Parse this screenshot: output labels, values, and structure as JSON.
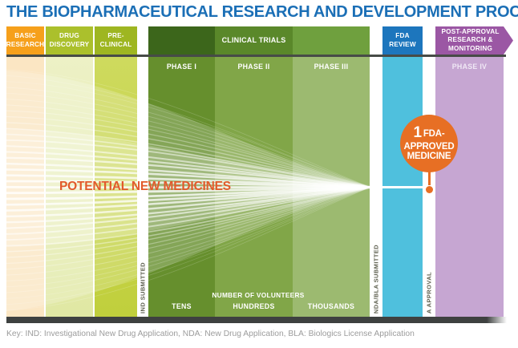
{
  "title": "THE BIOPHARMACEUTICAL RESEARCH AND DEVELOPMENT PROCESS",
  "header": {
    "basic_research": "BASIC RESEARCH",
    "drug_discovery": "DRUG DISCOVERY",
    "pre_clinical": "PRE-CLINICAL",
    "clinical_trials": "CLINICAL TRIALS",
    "fda_review": "FDA REVIEW",
    "post_approval": "POST-APPROVAL RESEARCH & MONITORING"
  },
  "phases": {
    "i": "PHASE I",
    "ii": "PHASE II",
    "iii": "PHASE III",
    "iv": "PHASE IV"
  },
  "funnel_label": "POTENTIAL NEW MEDICINES",
  "approved_badge": {
    "number": "1",
    "line1": "FDA-",
    "line2": "APPROVED",
    "line3": "MEDICINE"
  },
  "milestones": {
    "ind": "IND SUBMITTED",
    "nda": "NDA/BLA SUBMITTED",
    "approval": "A APPROVAL"
  },
  "volunteers": {
    "heading": "NUMBER OF VOLUNTEERS",
    "tens": "TENS",
    "hundreds": "HUNDREDS",
    "thousands": "THOUSANDS"
  },
  "key_text": "Key: IND: Investigational New Drug Application, NDA: New Drug Application, BLA: Biologics License Application",
  "colors": {
    "title_blue": "#1B6FB6",
    "basic_research_orange": "#F6A01B",
    "drug_discovery_green": "#ABC02C",
    "pre_clinical_green": "#9EB621",
    "clinical_trials_dark_green": "#3C661B",
    "fda_review_blue": "#1D76BD",
    "fda_column_cyan": "#4FC0DD",
    "post_approval_purple": "#9B57A4",
    "phase4_column_purple": "#C6A6D2",
    "badge_orange": "#E76F24",
    "funnel_label_orange": "#E25A2B"
  }
}
